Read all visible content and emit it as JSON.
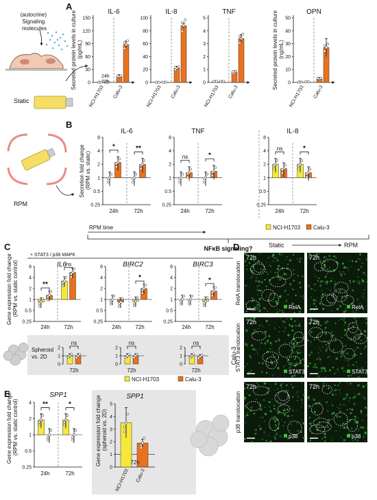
{
  "colors": {
    "yellow": "#f5e83a",
    "orange": "#e9711d",
    "green": "#3fbf3a",
    "gray_panel": "#e6e6e6"
  },
  "panels": {
    "A": "A",
    "B": "B",
    "C": "C",
    "D": "D",
    "E": "E"
  },
  "schematic": {
    "signaling": "(autocrine)\nSignaling\nmolecules",
    "static": "Static",
    "rpm": "RPM"
  },
  "panelA": {
    "ylabel_pg": "Secreted protein levels in culture\n(pg/mL)",
    "ylabel_ng": "Secreted protein levels in culture\n(ng/mL)",
    "time24": "24h",
    "time72": "72h",
    "charts": [
      {
        "title": "IL-6",
        "ticks": [
          "0",
          "30",
          "60",
          "90",
          "120",
          "150"
        ],
        "xcats": [
          "NCI-H1703",
          "Calu-3"
        ]
      },
      {
        "title": "IL-8",
        "ticks": [
          "0",
          "20",
          "40",
          "60",
          "80",
          "100"
        ],
        "xcats": [
          "NCI-H1703",
          "Calu-3"
        ]
      },
      {
        "title": "TNF",
        "ticks": [
          "0",
          "1",
          "2",
          "3",
          "4",
          "5"
        ],
        "xcats": [
          "NCI-H1703",
          "Calu-3"
        ]
      },
      {
        "title": "OPN",
        "ticks": [
          "0",
          "10",
          "20",
          "30",
          "40",
          "50"
        ],
        "xcats": [
          "NCI-H1703",
          "Calu-3"
        ]
      }
    ]
  },
  "panelB": {
    "ylabel": "Secretion fold change\n(RPM vs. static)",
    "ticks": [
      "0.25",
      "0.5",
      "1",
      "2",
      "4",
      "8"
    ],
    "xcats": [
      "24h",
      "72h"
    ],
    "rpm_time": "RPM time",
    "legend": [
      "NCI-H1703",
      "Calu-3"
    ],
    "charts": [
      {
        "title": "IL-6",
        "sig": [
          "*",
          "**"
        ]
      },
      {
        "title": "TNF",
        "sig": [
          "ns",
          "*"
        ]
      },
      {
        "title": "IL-8",
        "sig": [
          "ns",
          "*"
        ]
      }
    ]
  },
  "nfkb": "NFκB signaling?",
  "panelC": {
    "pathway": "+ STAT3 / p38 MAPK",
    "ylabel": "Gene expression fold change\n(RPM vs. static control)",
    "ticks": [
      "0.25",
      "0.5",
      "1",
      "2",
      "4",
      "8"
    ],
    "xcats": [
      "24h",
      "72h"
    ],
    "genes": [
      {
        "name": "IL6",
        "sig": [
          "**",
          "ns"
        ]
      },
      {
        "name": "BIRC2",
        "sig": [
          "",
          "*"
        ]
      },
      {
        "name": "BIRC3",
        "sig": [
          "",
          "*"
        ]
      }
    ],
    "spheroid_label": "Spheroid\nvs. 2D",
    "spheroid_ticks": [
      "0",
      "1",
      "2"
    ],
    "spheroid_time": "72h",
    "spheroid_sig": "ns",
    "legend": [
      "NCI-H1703",
      "Calu-3"
    ]
  },
  "panelD": {
    "static": "Static",
    "rpm": "RPM",
    "cell_line": "Calu-3",
    "rows": [
      {
        "label": "RelA translocation",
        "marker": "RelA",
        "time": "72h"
      },
      {
        "label": "STAT3 translocation",
        "marker": "STAT3",
        "time": "72h"
      },
      {
        "label": "p38 translocation",
        "marker": "p38",
        "time": "72h"
      }
    ]
  },
  "panelE": {
    "gene": "SPP1",
    "ylabel_left": "Gene expression fold change\n(RPM vs. static control)",
    "ylabel_right": "Gene expression fold change\n(spheroid vs. 2D)",
    "left_ticks": [
      "0.25",
      "0.5",
      "1",
      "2",
      "4"
    ],
    "right_ticks": [
      "0",
      "1",
      "2",
      "3",
      "4",
      "5"
    ],
    "xcats": [
      "24h",
      "72h"
    ],
    "sig": [
      "**",
      "*"
    ],
    "right_xcats": [
      "NCI-H1703",
      "Calu-3"
    ],
    "right_time": "72h"
  }
}
